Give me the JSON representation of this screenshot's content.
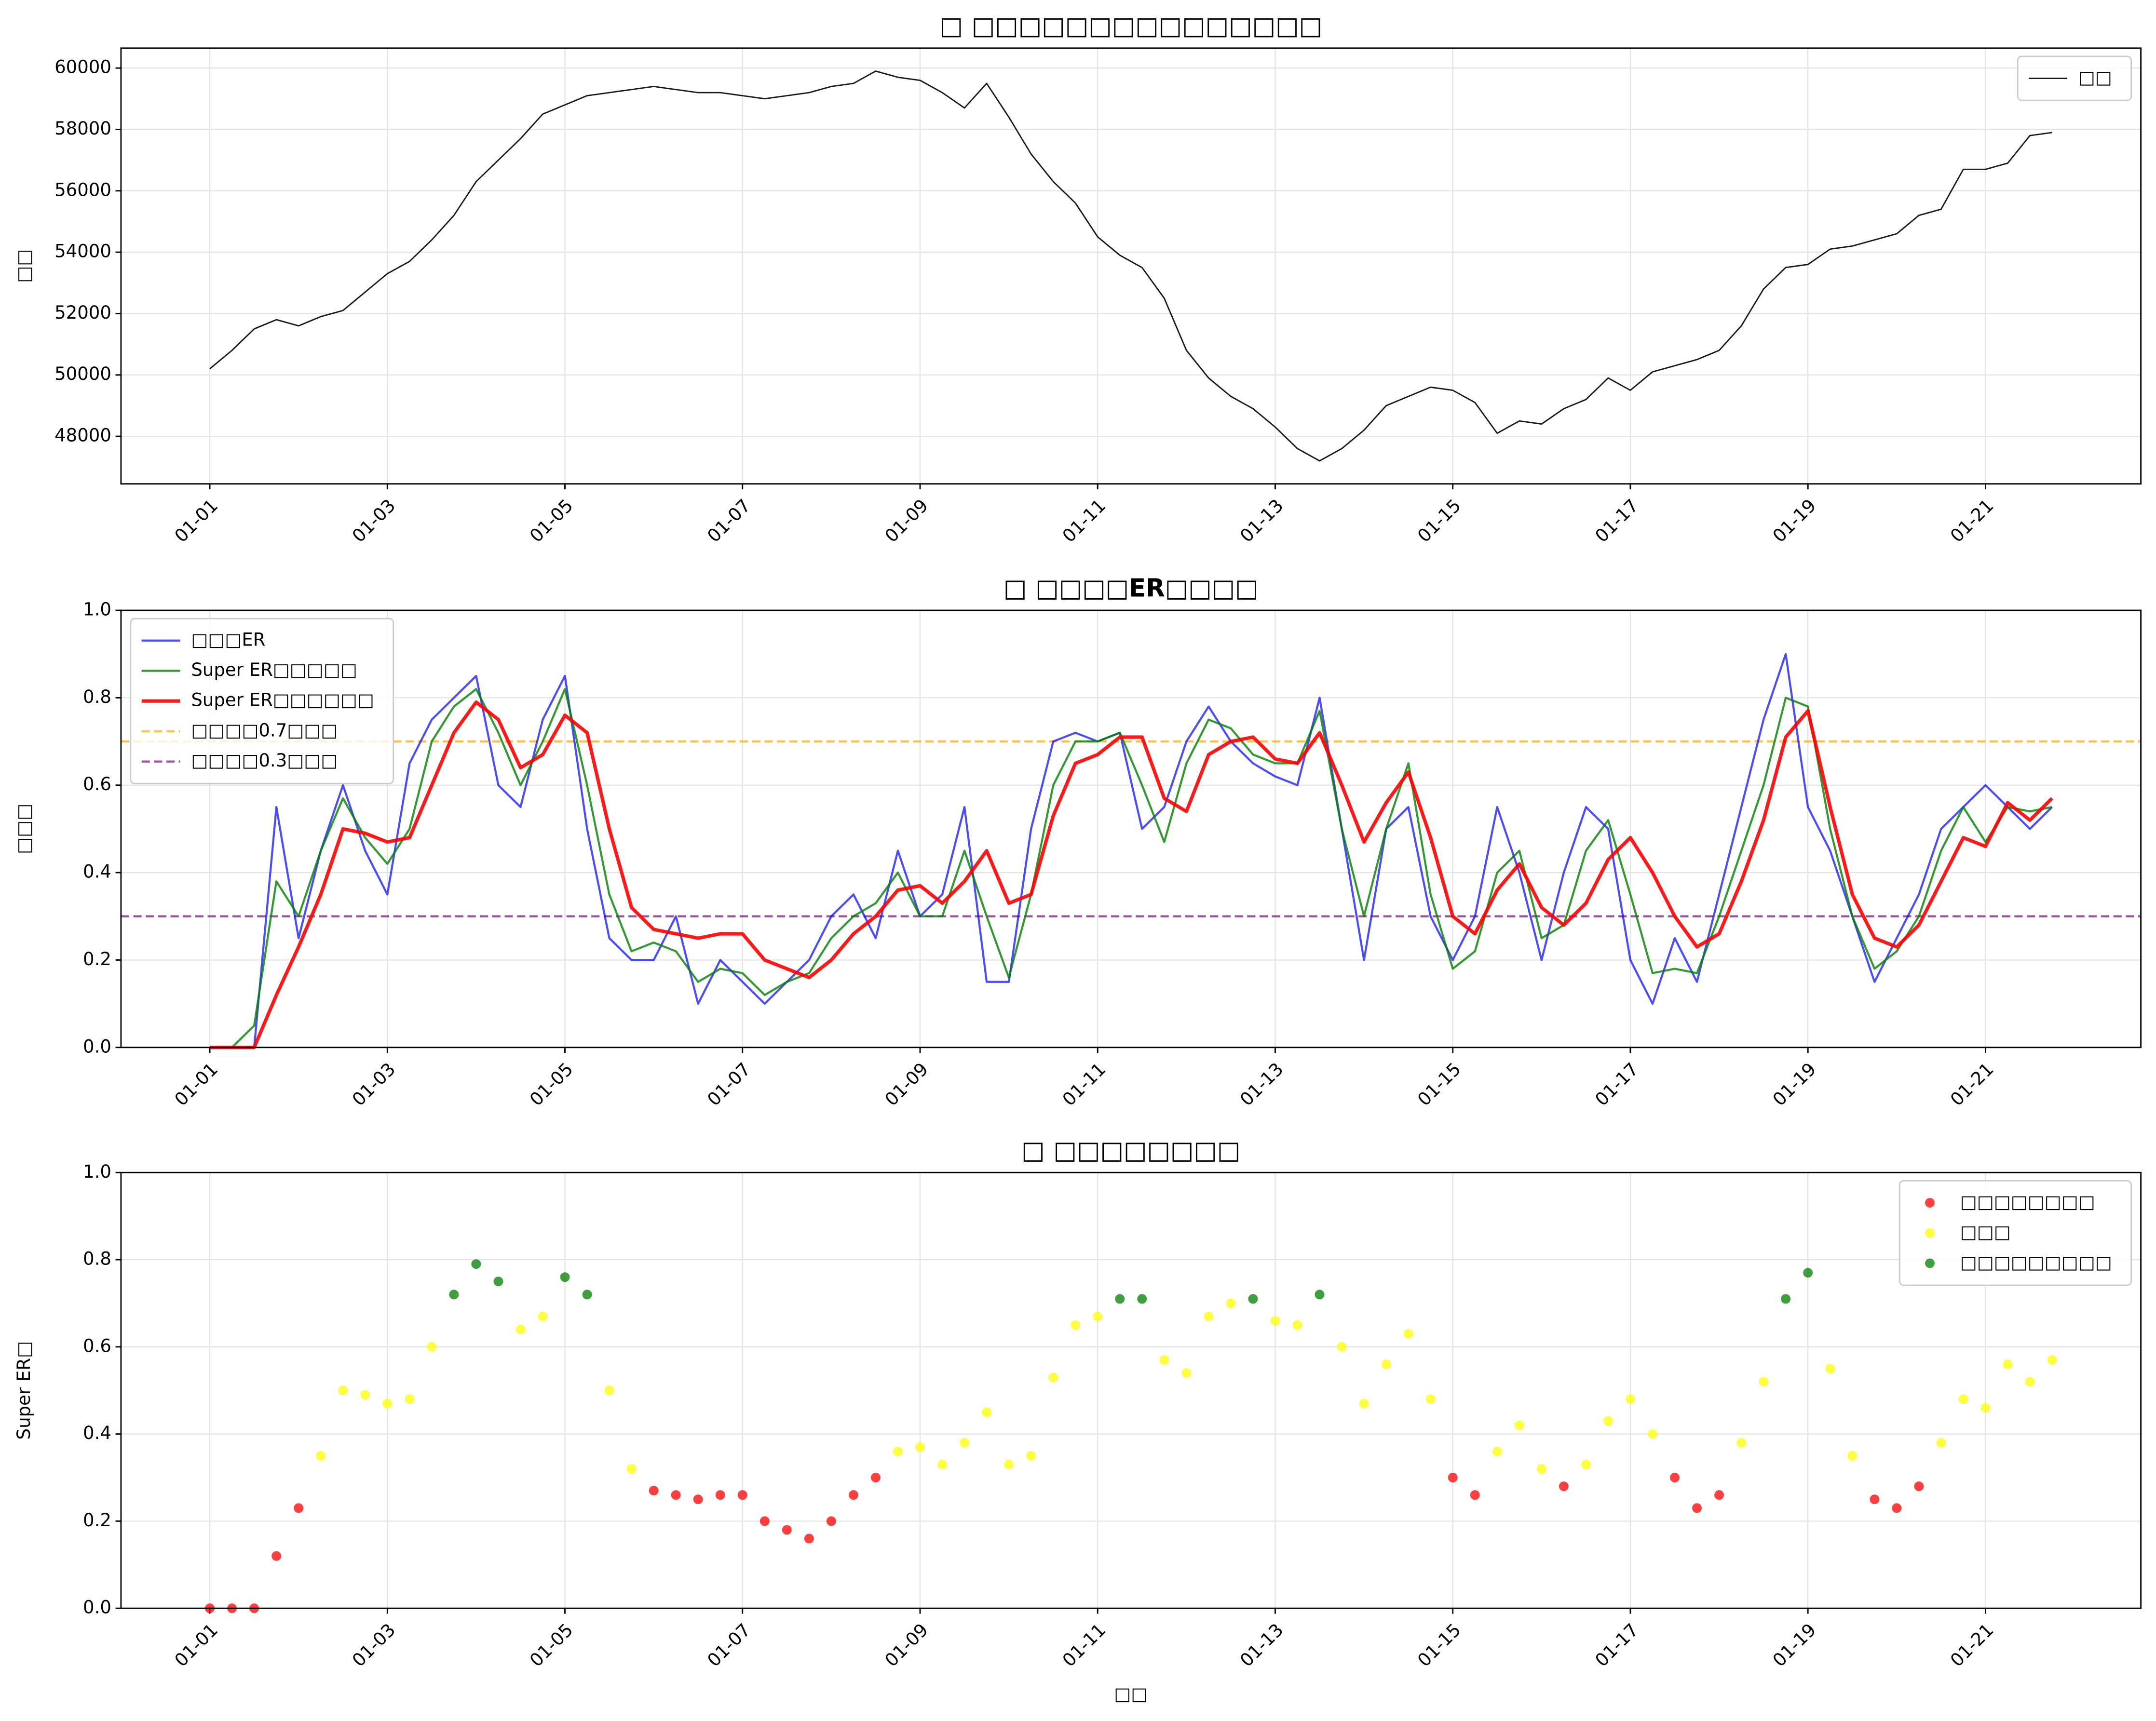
{
  "chart_data": [
    {
      "type": "line",
      "title": "□ □□□□□□□□□□□□□□□",
      "ylabel": "□□",
      "x": [
        1,
        1.25,
        1.5,
        1.75,
        2,
        2.25,
        2.5,
        2.75,
        3,
        3.25,
        3.5,
        3.75,
        4,
        4.25,
        4.5,
        4.75,
        5,
        5.25,
        5.5,
        5.75,
        6,
        6.25,
        6.5,
        6.75,
        7,
        7.25,
        7.5,
        7.75,
        8,
        8.25,
        8.5,
        8.75,
        9,
        9.25,
        9.5,
        9.75,
        10,
        10.25,
        10.5,
        10.75,
        11,
        11.25,
        11.5,
        11.75,
        12,
        12.25,
        12.5,
        12.75,
        13,
        13.25,
        13.5,
        13.75,
        14,
        14.25,
        14.5,
        14.75,
        15,
        15.25,
        15.5,
        15.75,
        16,
        16.25,
        16.5,
        16.75,
        17,
        17.25,
        17.5,
        17.75,
        18,
        18.25,
        18.5,
        18.75,
        19,
        19.25,
        19.5,
        19.75,
        20,
        20.25,
        20.5,
        20.75,
        21,
        21.25,
        21.5,
        21.75
      ],
      "series": [
        {
          "name": "□□",
          "color": "#000000",
          "linewidth": 1,
          "opacity": 0.9,
          "values": [
            50200,
            50800,
            51500,
            51800,
            51600,
            51900,
            52100,
            52700,
            53300,
            53700,
            54400,
            55200,
            56300,
            57000,
            57700,
            58500,
            58800,
            59100,
            59200,
            59300,
            59400,
            59300,
            59200,
            59200,
            59100,
            59000,
            59100,
            59200,
            59400,
            59500,
            59900,
            59700,
            59600,
            59200,
            58700,
            59500,
            58400,
            57200,
            56300,
            55600,
            54500,
            53900,
            53500,
            52500,
            50800,
            49900,
            49300,
            48900,
            48300,
            47600,
            47200,
            47600,
            48200,
            49000,
            49300,
            49600,
            49500,
            49100,
            48100,
            48500,
            48400,
            48900,
            49200,
            49900,
            49500,
            50100,
            50300,
            50500,
            50800,
            51600,
            52800,
            53500,
            53600,
            54100,
            54200,
            54400,
            54600,
            55200,
            55400,
            56700,
            56700,
            56900,
            57800,
            57900
          ]
        }
      ],
      "xlim": [
        0,
        22.75
      ],
      "xticks": [
        {
          "value": 1,
          "label": "01-01"
        },
        {
          "value": 3,
          "label": "01-03"
        },
        {
          "value": 5,
          "label": "01-05"
        },
        {
          "value": 7,
          "label": "01-07"
        },
        {
          "value": 9,
          "label": "01-09"
        },
        {
          "value": 11,
          "label": "01-11"
        },
        {
          "value": 13,
          "label": "01-13"
        },
        {
          "value": 15,
          "label": "01-15"
        },
        {
          "value": 17,
          "label": "01-17"
        },
        {
          "value": 19,
          "label": "01-19"
        },
        {
          "value": 21,
          "label": "01-21"
        }
      ],
      "ylim": [
        46450,
        60650
      ],
      "yticks": [
        48000,
        50000,
        52000,
        54000,
        56000,
        58000,
        60000
      ],
      "grid": true,
      "legend": "upper right"
    },
    {
      "type": "line",
      "title": "□ □□□□ER□□□□",
      "ylabel": "□□□",
      "x": [
        1,
        1.25,
        1.5,
        1.75,
        2,
        2.25,
        2.5,
        2.75,
        3,
        3.25,
        3.5,
        3.75,
        4,
        4.25,
        4.5,
        4.75,
        5,
        5.25,
        5.5,
        5.75,
        6,
        6.25,
        6.5,
        6.75,
        7,
        7.25,
        7.5,
        7.75,
        8,
        8.25,
        8.5,
        8.75,
        9,
        9.25,
        9.5,
        9.75,
        10,
        10.25,
        10.5,
        10.75,
        11,
        11.25,
        11.5,
        11.75,
        12,
        12.25,
        12.5,
        12.75,
        13,
        13.25,
        13.5,
        13.75,
        14,
        14.25,
        14.5,
        14.75,
        15,
        15.25,
        15.5,
        15.75,
        16,
        16.25,
        16.5,
        16.75,
        17,
        17.25,
        17.5,
        17.75,
        18,
        18.25,
        18.5,
        18.75,
        19,
        19.25,
        19.5,
        19.75,
        20,
        20.25,
        20.5,
        20.75,
        21,
        21.25,
        21.5,
        21.75
      ],
      "series": [
        {
          "name": "□□□ER",
          "color": "#0000ff",
          "linewidth": 1.5,
          "opacity": 0.7,
          "values": [
            0,
            0,
            0,
            0.55,
            0.25,
            0.45,
            0.6,
            0.45,
            0.35,
            0.65,
            0.75,
            0.8,
            0.85,
            0.6,
            0.55,
            0.75,
            0.85,
            0.5,
            0.25,
            0.2,
            0.2,
            0.3,
            0.1,
            0.2,
            0.15,
            0.1,
            0.15,
            0.2,
            0.3,
            0.35,
            0.25,
            0.45,
            0.3,
            0.35,
            0.55,
            0.15,
            0.15,
            0.5,
            0.7,
            0.72,
            0.7,
            0.72,
            0.5,
            0.55,
            0.7,
            0.78,
            0.7,
            0.65,
            0.62,
            0.6,
            0.8,
            0.5,
            0.2,
            0.5,
            0.55,
            0.3,
            0.2,
            0.3,
            0.55,
            0.4,
            0.2,
            0.4,
            0.55,
            0.5,
            0.2,
            0.1,
            0.25,
            0.15,
            0.35,
            0.55,
            0.75,
            0.9,
            0.55,
            0.45,
            0.3,
            0.15,
            0.25,
            0.35,
            0.5,
            0.55,
            0.6,
            0.55,
            0.5,
            0.55
          ]
        },
        {
          "name": "Super ER□□□□□",
          "color": "#008000",
          "linewidth": 1.5,
          "opacity": 0.8,
          "values": [
            0,
            0,
            0.05,
            0.38,
            0.3,
            0.45,
            0.57,
            0.48,
            0.42,
            0.5,
            0.7,
            0.78,
            0.82,
            0.72,
            0.6,
            0.7,
            0.82,
            0.6,
            0.35,
            0.22,
            0.24,
            0.22,
            0.15,
            0.18,
            0.17,
            0.12,
            0.15,
            0.17,
            0.25,
            0.3,
            0.33,
            0.4,
            0.3,
            0.3,
            0.45,
            0.3,
            0.16,
            0.35,
            0.6,
            0.7,
            0.7,
            0.72,
            0.6,
            0.47,
            0.65,
            0.75,
            0.73,
            0.67,
            0.65,
            0.65,
            0.77,
            0.5,
            0.3,
            0.5,
            0.65,
            0.35,
            0.18,
            0.22,
            0.4,
            0.45,
            0.25,
            0.28,
            0.45,
            0.52,
            0.35,
            0.17,
            0.18,
            0.17,
            0.3,
            0.45,
            0.6,
            0.8,
            0.78,
            0.5,
            0.3,
            0.18,
            0.22,
            0.3,
            0.45,
            0.55,
            0.47,
            0.55,
            0.54,
            0.55
          ]
        },
        {
          "name": "Super ER□□□□□□",
          "color": "#ff0000",
          "linewidth": 2.5,
          "opacity": 0.9,
          "values": [
            0,
            0,
            0,
            0.12,
            0.23,
            0.35,
            0.5,
            0.49,
            0.47,
            0.48,
            0.6,
            0.72,
            0.79,
            0.75,
            0.64,
            0.67,
            0.76,
            0.72,
            0.5,
            0.32,
            0.27,
            0.26,
            0.25,
            0.26,
            0.26,
            0.2,
            0.18,
            0.16,
            0.2,
            0.26,
            0.3,
            0.36,
            0.37,
            0.33,
            0.38,
            0.45,
            0.33,
            0.35,
            0.53,
            0.65,
            0.67,
            0.71,
            0.71,
            0.57,
            0.54,
            0.67,
            0.7,
            0.71,
            0.66,
            0.65,
            0.72,
            0.6,
            0.47,
            0.56,
            0.63,
            0.48,
            0.3,
            0.26,
            0.36,
            0.42,
            0.32,
            0.28,
            0.33,
            0.43,
            0.48,
            0.4,
            0.3,
            0.23,
            0.26,
            0.38,
            0.52,
            0.71,
            0.77,
            0.55,
            0.35,
            0.25,
            0.23,
            0.28,
            0.38,
            0.48,
            0.46,
            0.56,
            0.52,
            0.57
          ]
        }
      ],
      "hlines": [
        {
          "name": "□□□□0.7□□□",
          "color": "#ffa500",
          "value": 0.7
        },
        {
          "name": "□□□□0.3□□□",
          "color": "#800080",
          "value": 0.3
        }
      ],
      "xlim": [
        0,
        22.75
      ],
      "xticks": [
        {
          "value": 1,
          "label": "01-01"
        },
        {
          "value": 3,
          "label": "01-03"
        },
        {
          "value": 5,
          "label": "01-05"
        },
        {
          "value": 7,
          "label": "01-07"
        },
        {
          "value": 9,
          "label": "01-09"
        },
        {
          "value": 11,
          "label": "01-11"
        },
        {
          "value": 13,
          "label": "01-13"
        },
        {
          "value": 15,
          "label": "01-15"
        },
        {
          "value": 17,
          "label": "01-17"
        },
        {
          "value": 19,
          "label": "01-19"
        },
        {
          "value": 21,
          "label": "01-21"
        }
      ],
      "ylim": [
        0,
        1
      ],
      "yticks": [
        {
          "value": 0,
          "label": "0.0"
        },
        0.2,
        0.4,
        0.6,
        0.8,
        {
          "value": 1,
          "label": "1.0"
        }
      ],
      "grid": true,
      "legend": "upper left"
    },
    {
      "type": "scatter",
      "title": "□ □□□□□□□□",
      "ylabel": "Super ER□",
      "xlabel": "□□",
      "x": [
        1,
        1.25,
        1.5,
        1.75,
        2,
        2.25,
        2.5,
        2.75,
        3,
        3.25,
        3.5,
        3.75,
        4,
        4.25,
        4.5,
        4.75,
        5,
        5.25,
        5.5,
        5.75,
        6,
        6.25,
        6.5,
        6.75,
        7,
        7.25,
        7.5,
        7.75,
        8,
        8.25,
        8.5,
        8.75,
        9,
        9.25,
        9.5,
        9.75,
        10,
        10.25,
        10.5,
        10.75,
        11,
        11.25,
        11.5,
        11.75,
        12,
        12.25,
        12.5,
        12.75,
        13,
        13.25,
        13.5,
        13.75,
        14,
        14.25,
        14.5,
        14.75,
        15,
        15.25,
        15.5,
        15.75,
        16,
        16.25,
        16.5,
        16.75,
        17,
        17.25,
        17.5,
        17.75,
        18,
        18.25,
        18.5,
        18.75,
        19,
        19.25,
        19.5,
        19.75,
        20,
        20.25,
        20.5,
        20.75,
        21,
        21.25,
        21.5,
        21.75
      ],
      "values": [
        0,
        0,
        0,
        0.12,
        0.23,
        0.35,
        0.5,
        0.49,
        0.47,
        0.48,
        0.6,
        0.72,
        0.79,
        0.75,
        0.64,
        0.67,
        0.76,
        0.72,
        0.5,
        0.32,
        0.27,
        0.26,
        0.25,
        0.26,
        0.26,
        0.2,
        0.18,
        0.16,
        0.2,
        0.26,
        0.3,
        0.36,
        0.37,
        0.33,
        0.38,
        0.45,
        0.33,
        0.35,
        0.53,
        0.65,
        0.67,
        0.71,
        0.71,
        0.57,
        0.54,
        0.67,
        0.7,
        0.71,
        0.66,
        0.65,
        0.72,
        0.6,
        0.47,
        0.56,
        0.63,
        0.48,
        0.3,
        0.26,
        0.36,
        0.42,
        0.32,
        0.28,
        0.33,
        0.43,
        0.48,
        0.4,
        0.3,
        0.23,
        0.26,
        0.38,
        0.52,
        0.71,
        0.77,
        0.55,
        0.35,
        0.25,
        0.23,
        0.28,
        0.38,
        0.48,
        0.46,
        0.56,
        0.52,
        0.57
      ],
      "series": [
        {
          "name": "□□□□□□□□",
          "color": "#ff0000",
          "range": [
            0,
            0.3
          ]
        },
        {
          "name": "□□□",
          "color": "#ffff00",
          "range": [
            0.3,
            0.7
          ]
        },
        {
          "name": "□□□□□□□□□",
          "color": "#008000",
          "range": [
            0.7,
            1
          ]
        }
      ],
      "xlim": [
        0,
        22.75
      ],
      "xticks": [
        {
          "value": 1,
          "label": "01-01"
        },
        {
          "value": 3,
          "label": "01-03"
        },
        {
          "value": 5,
          "label": "01-05"
        },
        {
          "value": 7,
          "label": "01-07"
        },
        {
          "value": 9,
          "label": "01-09"
        },
        {
          "value": 11,
          "label": "01-11"
        },
        {
          "value": 13,
          "label": "01-13"
        },
        {
          "value": 15,
          "label": "01-15"
        },
        {
          "value": 17,
          "label": "01-17"
        },
        {
          "value": 19,
          "label": "01-19"
        },
        {
          "value": 21,
          "label": "01-21"
        }
      ],
      "ylim": [
        0,
        1
      ],
      "yticks": [
        {
          "value": 0,
          "label": "0.0"
        },
        0.2,
        0.4,
        0.6,
        0.8,
        {
          "value": 1,
          "label": "1.0"
        }
      ],
      "grid": true,
      "legend": "upper right"
    }
  ]
}
